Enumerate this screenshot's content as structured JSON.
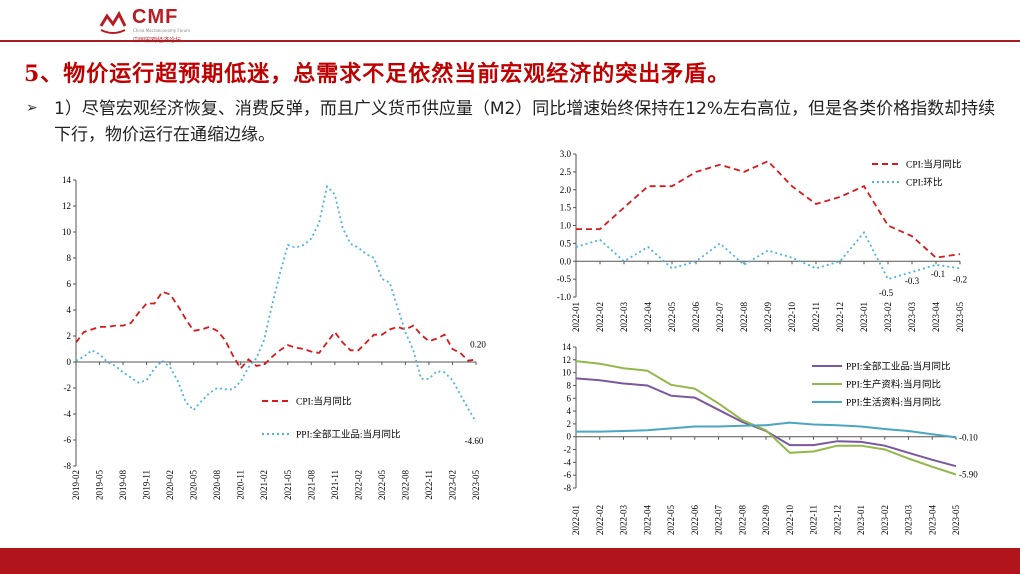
{
  "header": {
    "logo_text": "CMF",
    "logo_sub_en": "China Macroeconomy Forum",
    "logo_sub_cn": "中国宏观经济论坛"
  },
  "slide": {
    "title": "5、物价运行超预期低迷，总需求不足依然当前宏观经济的突出矛盾。",
    "bullet_marker": "➢",
    "bullet_text": "1）尽管宏观经济恢复、消费反弹，而且广义货币供应量（M2）同比增速始终保持在12%左右高位，但是各类价格指数却持续下行，物价运行在通缩边缘。"
  },
  "colors": {
    "brand": "#b2141c",
    "title": "#c00000",
    "red": "#d7191c",
    "cyan": "#4bb5e0",
    "purple": "#7b579c",
    "green": "#92b84a",
    "teal": "#4aa6c2"
  },
  "chart_data": [
    {
      "type": "line",
      "ylim": [
        -8,
        14
      ],
      "yticks": [
        -8,
        -6,
        -4,
        -2,
        0,
        2,
        4,
        6,
        8,
        10,
        12,
        14
      ],
      "x_tick_labels": [
        "2019-02",
        "2019-05",
        "2019-08",
        "2019-11",
        "2020-02",
        "2020-05",
        "2020-08",
        "2020-11",
        "2021-02",
        "2021-05",
        "2021-08",
        "2021-11",
        "2022-02",
        "2022-05",
        "2022-08",
        "2022-11",
        "2023-02",
        "2023-05"
      ],
      "x": [
        "2019-02",
        "2019-03",
        "2019-04",
        "2019-05",
        "2019-06",
        "2019-07",
        "2019-08",
        "2019-09",
        "2019-10",
        "2019-11",
        "2019-12",
        "2020-01",
        "2020-02",
        "2020-03",
        "2020-04",
        "2020-05",
        "2020-06",
        "2020-07",
        "2020-08",
        "2020-09",
        "2020-10",
        "2020-11",
        "2020-12",
        "2021-01",
        "2021-02",
        "2021-03",
        "2021-04",
        "2021-05",
        "2021-06",
        "2021-07",
        "2021-08",
        "2021-09",
        "2021-10",
        "2021-11",
        "2021-12",
        "2022-01",
        "2022-02",
        "2022-03",
        "2022-04",
        "2022-05",
        "2022-06",
        "2022-07",
        "2022-08",
        "2022-09",
        "2022-10",
        "2022-11",
        "2022-12",
        "2023-01",
        "2023-02",
        "2023-03",
        "2023-04",
        "2023-05"
      ],
      "series": [
        {
          "name": "CPI:当月同比",
          "color": "#d7191c",
          "dash": "6,4",
          "values": [
            1.5,
            2.3,
            2.5,
            2.7,
            2.7,
            2.8,
            2.8,
            3.0,
            3.8,
            4.5,
            4.5,
            5.4,
            5.2,
            4.3,
            3.3,
            2.4,
            2.5,
            2.7,
            2.4,
            1.7,
            0.5,
            -0.5,
            0.2,
            -0.3,
            -0.2,
            0.4,
            0.9,
            1.3,
            1.1,
            1.0,
            0.8,
            0.7,
            1.5,
            2.3,
            1.5,
            0.9,
            0.9,
            1.5,
            2.1,
            2.1,
            2.5,
            2.7,
            2.5,
            2.8,
            2.1,
            1.6,
            1.8,
            2.1,
            1.0,
            0.7,
            0.1,
            0.2
          ]
        },
        {
          "name": "PPI:全部工业品:当月同比",
          "color": "#4bb5e0",
          "dash": "2,3",
          "values": [
            0.1,
            0.4,
            0.9,
            0.6,
            0.0,
            -0.3,
            -0.8,
            -1.2,
            -1.6,
            -1.4,
            -0.5,
            0.1,
            -0.4,
            -1.5,
            -3.1,
            -3.7,
            -3.0,
            -2.4,
            -2.0,
            -2.1,
            -2.1,
            -1.5,
            -0.4,
            0.3,
            1.7,
            4.4,
            6.8,
            9.0,
            8.8,
            9.0,
            9.5,
            10.7,
            13.5,
            12.9,
            10.3,
            9.1,
            8.8,
            8.3,
            8.0,
            6.4,
            6.1,
            4.2,
            2.3,
            0.9,
            -1.3,
            -1.3,
            -0.7,
            -0.8,
            -1.4,
            -2.5,
            -3.6,
            -4.6
          ]
        }
      ],
      "annotations": [
        "0.20",
        "-4.60"
      ]
    },
    {
      "type": "line",
      "ylim": [
        -1.0,
        3.0
      ],
      "yticks": [
        "-1.0",
        "-0.5",
        "0.0",
        "0.5",
        "1.0",
        "1.5",
        "2.0",
        "2.5",
        "3.0"
      ],
      "x": [
        "2022-01",
        "2022-02",
        "2022-03",
        "2022-04",
        "2022-05",
        "2022-06",
        "2022-07",
        "2022-08",
        "2022-09",
        "2022-10",
        "2022-11",
        "2022-12",
        "2023-01",
        "2023-02",
        "2023-03",
        "2023-04",
        "2023-05"
      ],
      "series": [
        {
          "name": "CPI:当月同比",
          "color": "#d7191c",
          "dash": "6,4",
          "values": [
            0.9,
            0.9,
            1.5,
            2.1,
            2.1,
            2.5,
            2.7,
            2.5,
            2.8,
            2.1,
            1.6,
            1.8,
            2.1,
            1.0,
            0.7,
            0.1,
            0.2
          ]
        },
        {
          "name": "CPI:环比",
          "color": "#4bb5e0",
          "dash": "2,3",
          "values": [
            0.4,
            0.6,
            0.0,
            0.4,
            -0.2,
            0.0,
            0.5,
            -0.1,
            0.3,
            0.1,
            -0.2,
            0.0,
            0.8,
            -0.5,
            -0.3,
            -0.1,
            -0.2
          ]
        }
      ],
      "annotations": [
        "-0.5",
        "-0.3",
        "-0.1",
        "-0.2"
      ]
    },
    {
      "type": "line",
      "ylim": [
        -8,
        14
      ],
      "yticks": [
        "-8",
        "-6",
        "-4",
        "-2",
        "0",
        "2",
        "4",
        "6",
        "8",
        "10",
        "12",
        "14"
      ],
      "x": [
        "2022-01",
        "2022-02",
        "2022-03",
        "2022-04",
        "2022-05",
        "2022-06",
        "2022-07",
        "2022-08",
        "2022-09",
        "2022-10",
        "2022-11",
        "2022-12",
        "2023-01",
        "2023-02",
        "2023-03",
        "2023-04",
        "2023-05"
      ],
      "series": [
        {
          "name": "PPI:全部工业品:当月同比",
          "color": "#7b579c",
          "values": [
            9.1,
            8.8,
            8.3,
            8.0,
            6.4,
            6.1,
            4.2,
            2.3,
            0.9,
            -1.3,
            -1.3,
            -0.7,
            -0.8,
            -1.4,
            -2.5,
            -3.6,
            -4.6
          ]
        },
        {
          "name": "PPI:生产资料:当月同比",
          "color": "#92b84a",
          "values": [
            11.8,
            11.4,
            10.7,
            10.3,
            8.1,
            7.5,
            5.2,
            2.6,
            1.0,
            -2.5,
            -2.3,
            -1.4,
            -1.4,
            -2.0,
            -3.4,
            -4.7,
            -5.9
          ]
        },
        {
          "name": "PPI:生活资料:当月同比",
          "color": "#4aa6c2",
          "values": [
            0.8,
            0.8,
            0.9,
            1.0,
            1.3,
            1.6,
            1.6,
            1.7,
            1.8,
            2.2,
            1.9,
            1.8,
            1.6,
            1.2,
            0.9,
            0.4,
            -0.1
          ]
        }
      ],
      "annotations": [
        "-0.10",
        "-5.90"
      ]
    }
  ]
}
